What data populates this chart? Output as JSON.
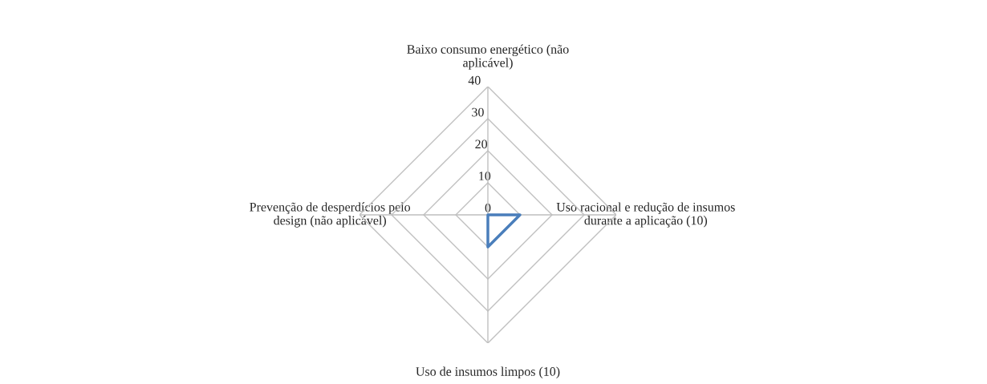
{
  "chart_data": {
    "type": "radar",
    "categories": [
      "Baixo consumo energético (não aplicável)",
      "Uso racional e redução de insumos durante a aplicação (10)",
      "Uso de insumos limpos (10)",
      "Prevenção de desperdícios pelo design (não aplicável)"
    ],
    "series": [
      {
        "color": "#4a7ebb",
        "values": [
          0,
          10,
          10,
          0
        ]
      }
    ],
    "ylim": [
      0,
      40
    ],
    "yticks": [
      0,
      10,
      20,
      30,
      40
    ],
    "grid": true,
    "marker": "none"
  }
}
